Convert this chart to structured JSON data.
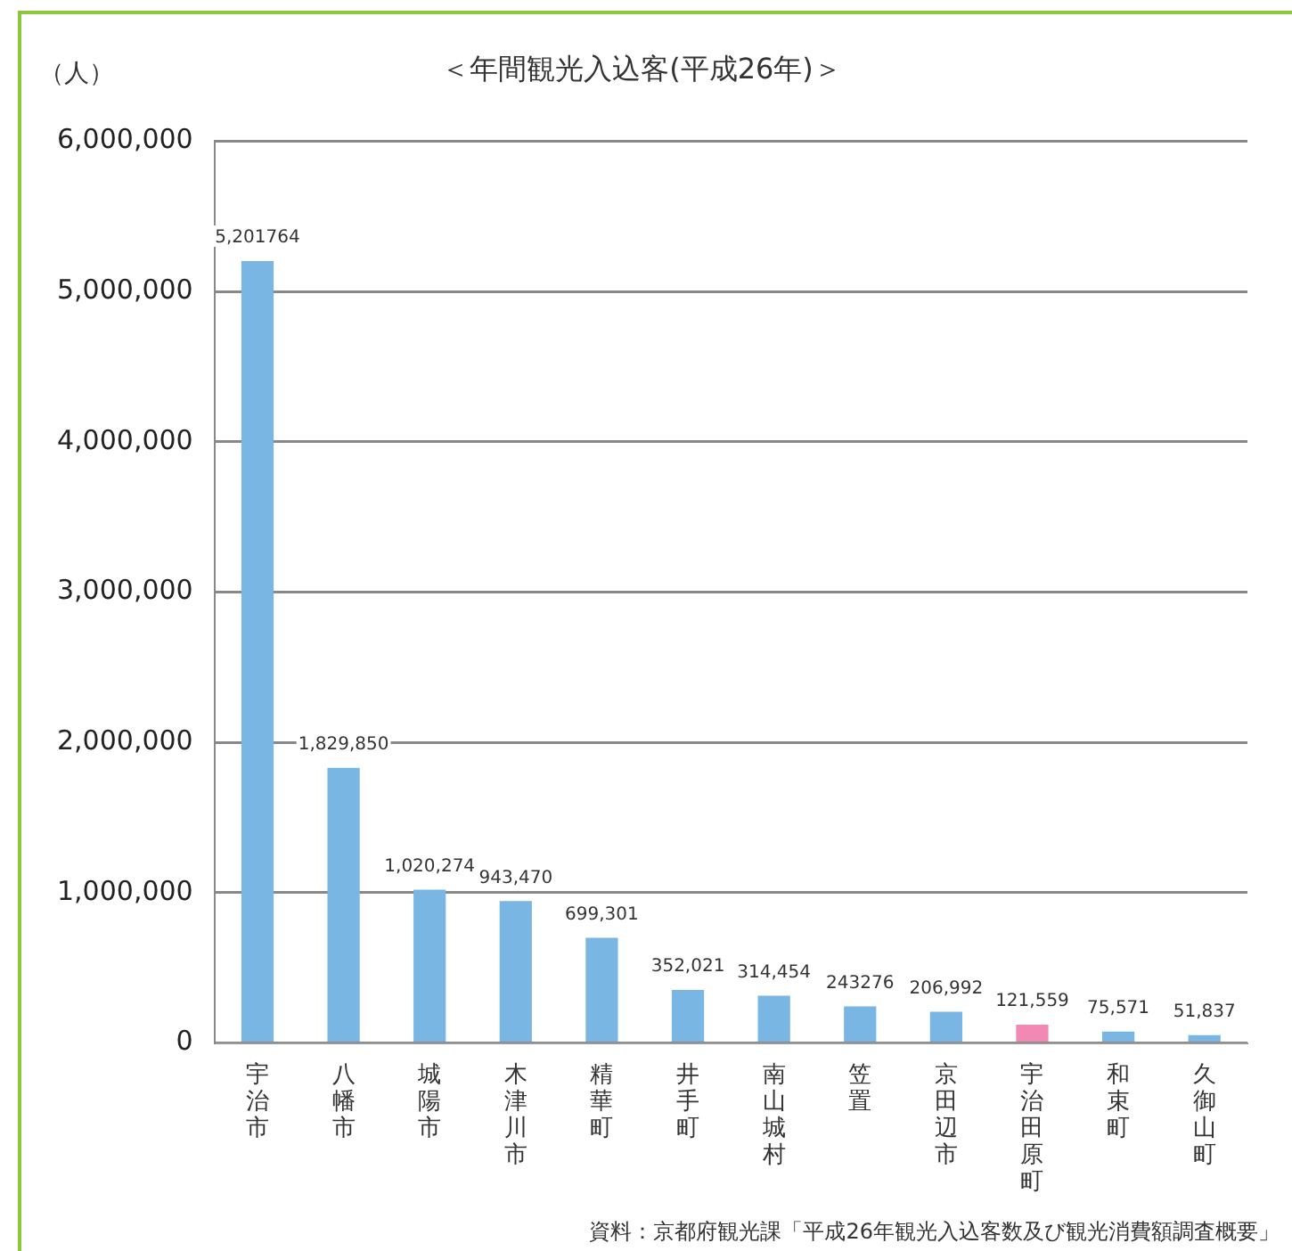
{
  "chart_data": {
    "type": "bar",
    "title": "＜年間観光入込客(平成26年)＞",
    "ylabel": "（人）",
    "categories": [
      "宇治市",
      "八幡市",
      "城陽市",
      "木津川市",
      "精華町",
      "井手町",
      "南山城村",
      "笠置",
      "京田辺市",
      "宇治田原町",
      "和束町",
      "久御山町"
    ],
    "values": [
      5201764,
      1829850,
      1020274,
      943470,
      699301,
      352021,
      314454,
      243276,
      206992,
      121559,
      75571,
      51837
    ],
    "value_labels": [
      "5,201764",
      "1,829,850",
      "1,020,274",
      "943,470",
      "699,301",
      "352,021",
      "314,454",
      "243276",
      "206,992",
      "121,559",
      "75,571",
      "51,837"
    ],
    "colors": [
      "#79b6e3",
      "#79b6e3",
      "#79b6e3",
      "#79b6e3",
      "#79b6e3",
      "#79b6e3",
      "#79b6e3",
      "#79b6e3",
      "#79b6e3",
      "#f288b4",
      "#79b6e3",
      "#79b6e3"
    ],
    "ylim": [
      0,
      6000000
    ],
    "yticks": [
      0,
      {
        "value": 1000000,
        "label": "1,000,000"
      },
      {
        "value": 2000000,
        "label": "2,000,000"
      },
      {
        "value": 3000000,
        "label": "3,000,000"
      },
      {
        "value": 4000000,
        "label": "4,000,000"
      },
      {
        "value": 5000000,
        "label": "5,000,000"
      },
      {
        "value": 6000000,
        "label": "6,000,000"
      }
    ],
    "grid": "y",
    "legend": false,
    "annotations": [
      "資料：京都府観光課「平成26年観光入込客数及び観光消費額調査概要」"
    ]
  }
}
